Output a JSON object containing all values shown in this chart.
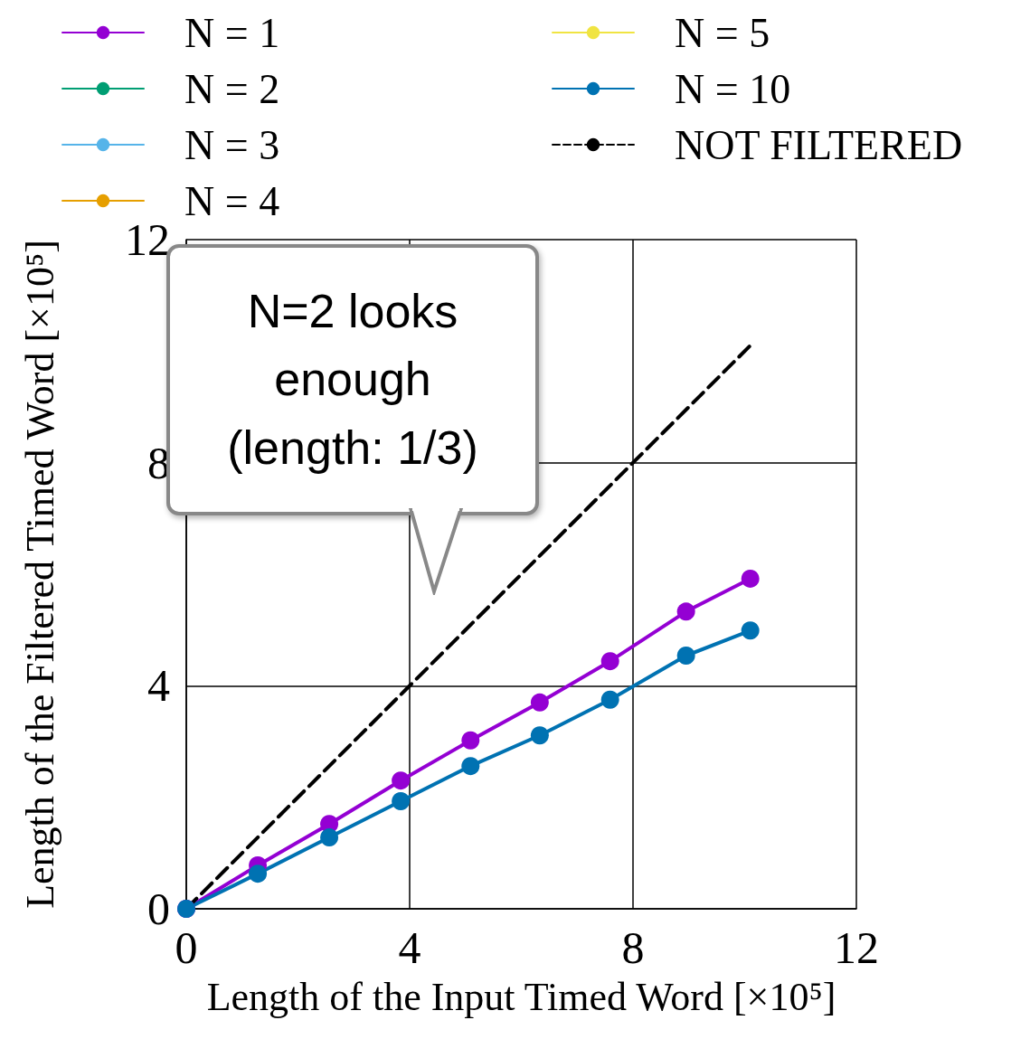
{
  "chart_data": {
    "type": "line",
    "xlabel": "Length of the Input Timed Word [×10⁵]",
    "ylabel": "Length of the Filtered Timed Word [×10⁵]",
    "x": [
      0,
      1.28,
      2.56,
      3.84,
      5.09,
      6.33,
      7.59,
      8.95,
      10.1
    ],
    "xlim": [
      0,
      12
    ],
    "xticks": [
      0,
      4,
      8,
      12
    ],
    "ylim": [
      0,
      12
    ],
    "yticks": [
      0,
      4,
      8,
      12
    ],
    "grid": true,
    "legend": "top",
    "marker": "circle",
    "series": [
      {
        "name": "N = 1",
        "color": "#9400d3",
        "values": [
          0,
          0.78,
          1.52,
          2.3,
          3.02,
          3.7,
          4.44,
          5.33,
          5.92
        ]
      },
      {
        "name": "N = 2",
        "color": "#009e73",
        "values": [
          null,
          null,
          null,
          null,
          null,
          null,
          null,
          null,
          null
        ]
      },
      {
        "name": "N = 3",
        "color": "#56b4e9",
        "values": [
          null,
          null,
          null,
          null,
          null,
          null,
          null,
          null,
          null
        ]
      },
      {
        "name": "N = 4",
        "color": "#e69f00",
        "values": [
          null,
          null,
          null,
          null,
          null,
          null,
          null,
          null,
          null
        ]
      },
      {
        "name": "N = 5",
        "color": "#f0e442",
        "values": [
          null,
          null,
          null,
          null,
          null,
          null,
          null,
          null,
          null
        ]
      },
      {
        "name": "N = 10",
        "color": "#0072b2",
        "values": [
          0,
          0.63,
          1.28,
          1.93,
          2.56,
          3.11,
          3.75,
          4.54,
          4.99
        ]
      },
      {
        "name": "NOT FILTERED",
        "color": "#000000",
        "x": [
          0,
          10.1
        ],
        "values": [
          0,
          10.1
        ],
        "line_style": "dashed",
        "marker": "none"
      }
    ],
    "annotations": [
      "N=2 looks enough (length: 1/3)"
    ]
  }
}
